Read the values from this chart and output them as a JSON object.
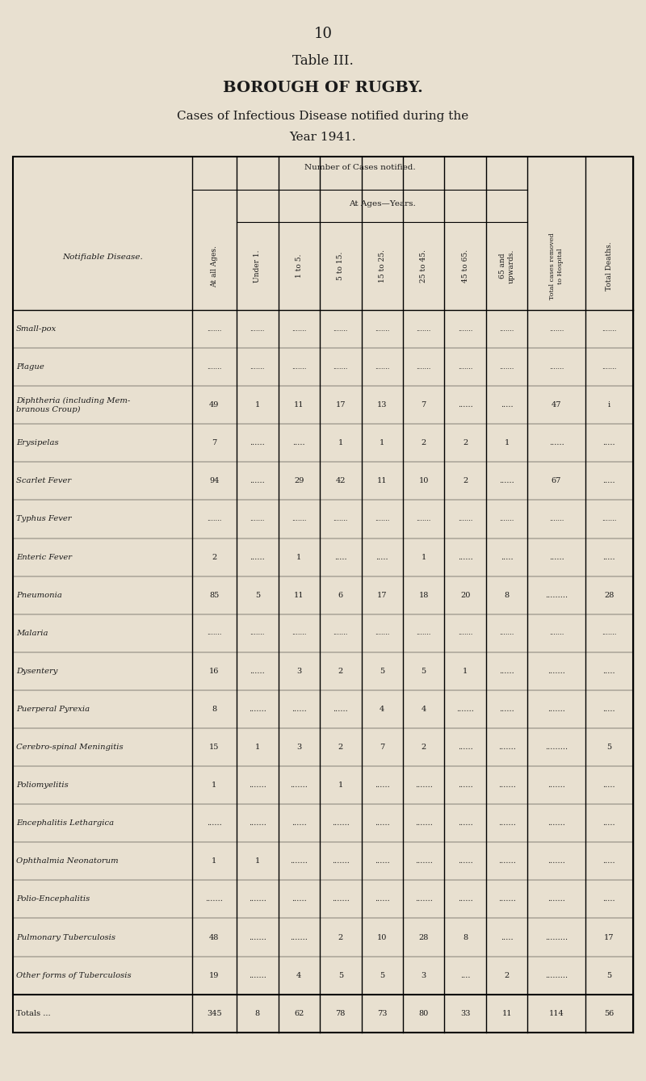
{
  "page_number": "10",
  "table_title": "Table III.",
  "subtitle1": "BOROUGH OF RUGBY.",
  "subtitle2": "Cases of Infectious Disease notified during the",
  "subtitle3": "Year 1941.",
  "bg_color": "#e8e0d0",
  "text_color": "#1a1a1a",
  "col_headers_main": "Number of Cases notified.",
  "col_headers_sub": "At Ages—Years.",
  "col_header_row1": [
    "Notifiable Disease.",
    "At all Ages.",
    "Under 1.",
    "1 to 5.",
    "5 to 15.",
    "15 to 25.",
    "25 to 45.",
    "45 to 65.",
    "65 and\nupwards.",
    "Total cases removed\nto Hospital",
    "Total Deaths."
  ],
  "diseases": [
    "Small-pox",
    "Plague",
    "Diphtheria (including Mem-\nbranous Croup)",
    "Erysipelas",
    "Scarlet Fever",
    "Typhus Fever",
    "Enteric Fever",
    "Pneumonia",
    "Malaria",
    "Dysentery",
    "Puerperal Pyrexia",
    "Cerebro-spinal Meningitis",
    "Poliomyelitis",
    "Encephalitis Lethargica",
    "Ophthalmia Neonatorum",
    "Polio-Encephalitis",
    "Pulmonary Tuberculosis",
    "Other forms of Tuberculosis",
    "Totals ..."
  ],
  "data": [
    [
      "",
      "",
      "",
      "",
      "",
      "",
      "",
      "",
      "",
      ""
    ],
    [
      "",
      "",
      "",
      "",
      "",
      "",
      "",
      "",
      "",
      ""
    ],
    [
      "49",
      "1",
      "11",
      "17",
      "13",
      "7",
      "......",
      ".....",
      "47",
      "i"
    ],
    [
      "7",
      "......",
      ".....",
      "1",
      "1",
      "2",
      "2",
      "1",
      "......",
      "....."
    ],
    [
      "94",
      "......",
      "29",
      "42",
      "11",
      "10",
      "2",
      "......",
      "67",
      "....."
    ],
    [
      "",
      "",
      "",
      "",
      "",
      "",
      "",
      "",
      "",
      ""
    ],
    [
      "2",
      "......",
      "1",
      ".....",
      ".....",
      "1",
      "......",
      ".....",
      "......",
      "....."
    ],
    [
      "85",
      "5",
      "11",
      "6",
      "17",
      "18",
      "20",
      "8",
      ".........",
      "28"
    ],
    [
      "",
      "",
      "",
      "",
      "",
      "",
      "",
      "",
      "",
      ""
    ],
    [
      "16",
      "......",
      "3",
      "2",
      "5",
      "5",
      "1",
      "......",
      ".......",
      "....."
    ],
    [
      "8",
      ".......",
      "......",
      "......",
      "4",
      "4",
      ".......",
      "......",
      ".......",
      "....."
    ],
    [
      "15",
      "1",
      "3",
      "2",
      "7",
      "2",
      "......",
      ".......",
      ".........",
      "5"
    ],
    [
      "1",
      ".......",
      ".......",
      "1",
      "......",
      ".......",
      "......",
      ".......",
      ".......",
      "....."
    ],
    [
      "......",
      ".......",
      "......",
      ".......",
      "......",
      ".......",
      "......",
      ".......",
      ".......",
      "....."
    ],
    [
      "1",
      "1",
      ".......",
      ".......",
      "......",
      ".......",
      "......",
      ".......",
      ".......",
      "....."
    ],
    [
      ".......",
      ".......",
      "......",
      ".......",
      "......",
      ".......",
      "......",
      ".......",
      ".......",
      "....."
    ],
    [
      "48",
      ".......",
      ".......",
      "2",
      "10",
      "28",
      "8",
      ".....",
      ".........",
      "17"
    ],
    [
      "19",
      ".......",
      "4",
      "5",
      "5",
      "3",
      "....",
      "2",
      ".........",
      "5"
    ],
    [
      "345",
      "8",
      "62",
      "78",
      "73",
      "80",
      "33",
      "11",
      "114",
      "56"
    ]
  ]
}
